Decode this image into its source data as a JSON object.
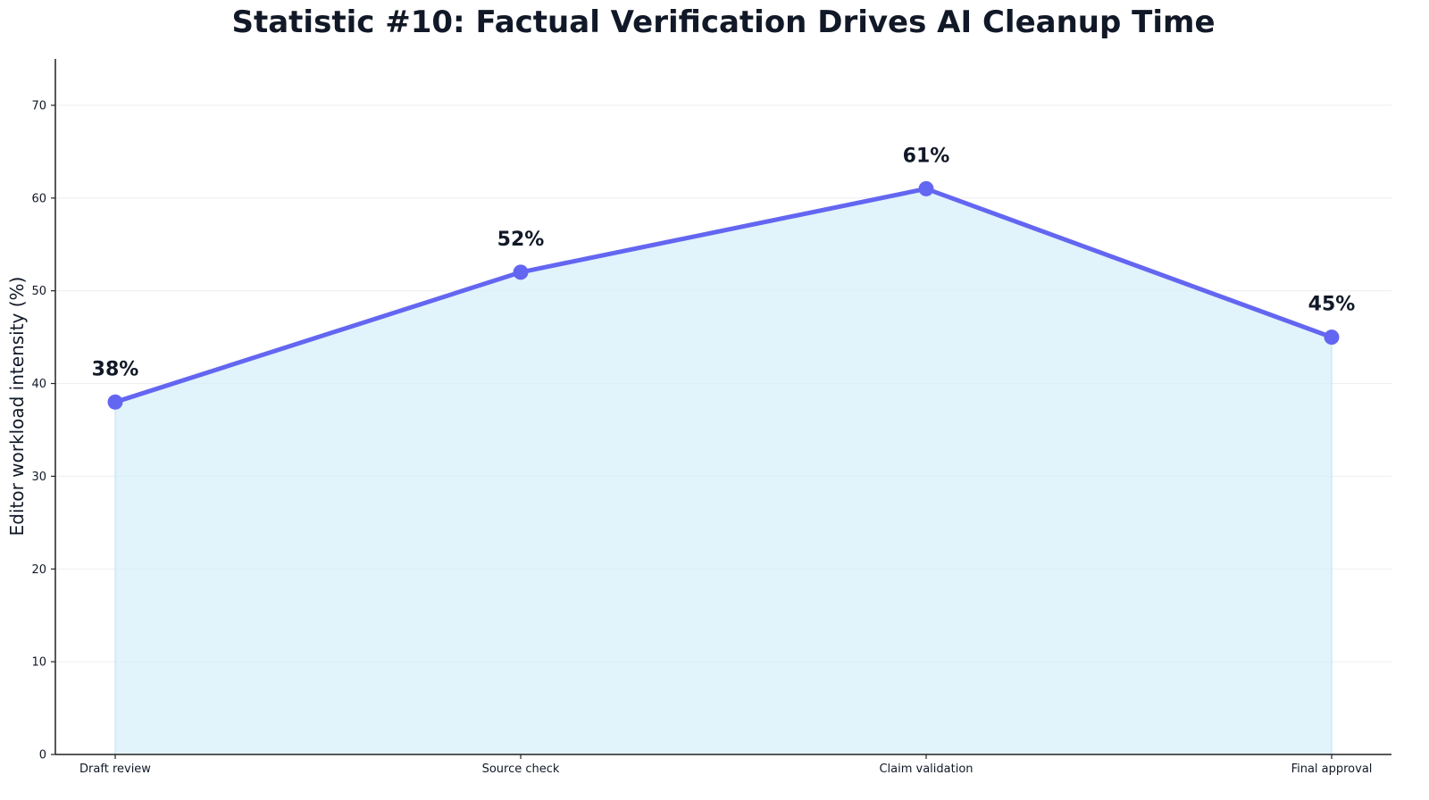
{
  "chart_data": {
    "type": "area",
    "title": "Statistic #10: Factual Verification Drives AI Cleanup Time",
    "xlabel": "",
    "ylabel": "Editor workload intensity (%)",
    "categories": [
      "Draft review",
      "Source check",
      "Claim validation",
      "Final approval"
    ],
    "values": [
      38,
      52,
      61,
      45
    ],
    "data_labels": [
      "38%",
      "52%",
      "61%",
      "45%"
    ],
    "ylim": [
      0,
      75
    ],
    "yticks": [
      0,
      10,
      20,
      30,
      40,
      50,
      60,
      70
    ],
    "grid": true,
    "colors": {
      "line": "#6366f1",
      "area": "#d7eff9",
      "text": "#111827"
    }
  }
}
